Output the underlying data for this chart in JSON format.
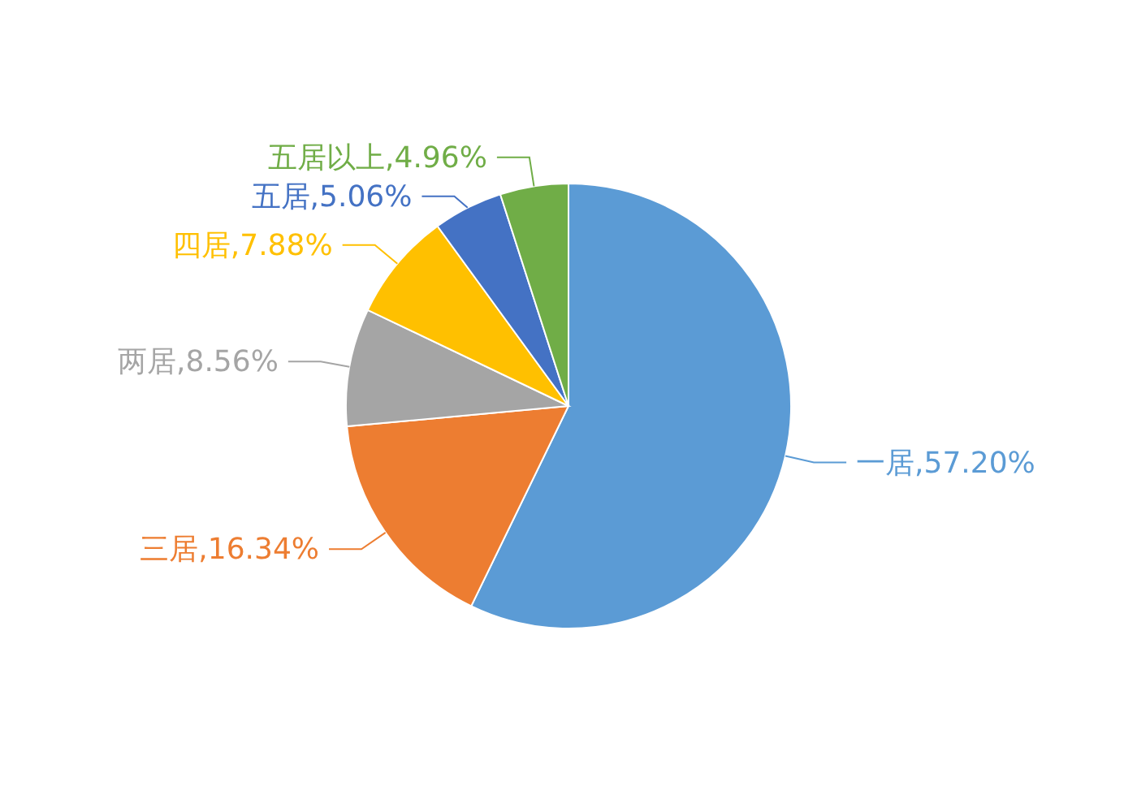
{
  "chart_data": {
    "type": "pie",
    "categories": [
      "一居",
      "三居",
      "两居",
      "四居",
      "五居",
      "五居以上"
    ],
    "values": [
      57.2,
      16.34,
      8.56,
      7.88,
      5.06,
      4.96
    ],
    "value_labels": [
      ",57.20%",
      ",16.34%",
      ",8.56%",
      ",7.88%",
      ",5.06%",
      ",4.96%"
    ],
    "colors": [
      "#5b9bd5",
      "#ed7d31",
      "#a5a5a5",
      "#ffc000",
      "#4472c4",
      "#70ad47"
    ]
  }
}
